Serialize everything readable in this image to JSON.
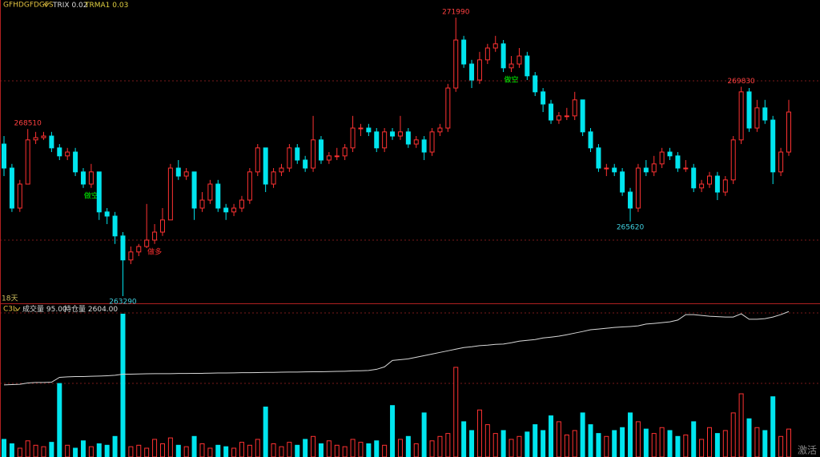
{
  "chart_data": {
    "type": "candlestick",
    "symbol": "GFHDGFDGFS",
    "indicators": [
      {
        "name": "TRIX",
        "value": 0.02
      },
      {
        "name": "TRMA1",
        "value": 0.03
      }
    ],
    "period_label": "18天",
    "panel_label": "C3L",
    "status": "激活",
    "open": [
      268040,
      267290,
      266040,
      266790,
      268170,
      268240,
      268290,
      267920,
      267670,
      267790,
      267170,
      266790,
      267170,
      265920,
      265790,
      265170,
      264420,
      264670,
      264840,
      265040,
      265290,
      265670,
      267290,
      267040,
      267170,
      266040,
      266290,
      266790,
      266040,
      265920,
      266040,
      266290,
      267170,
      267920,
      266790,
      267170,
      267290,
      267920,
      267540,
      267290,
      268170,
      267540,
      267670,
      267670,
      267920,
      268540,
      268540,
      268420,
      267920,
      268420,
      268290,
      268420,
      268040,
      268170,
      267790,
      268420,
      268540,
      269790,
      271290,
      270540,
      270040,
      270670,
      271040,
      271170,
      270420,
      270540,
      270790,
      270170,
      269670,
      269290,
      268790,
      268920,
      268920,
      269420,
      268420,
      267920,
      267290,
      267290,
      267170,
      266540,
      266040,
      267290,
      267170,
      267420,
      267790,
      267670,
      267290,
      267290,
      266670,
      266790,
      267040,
      266540,
      266920,
      268170,
      269670,
      268540,
      269170,
      268790,
      267170,
      267790
    ],
    "high": [
      268290,
      267420,
      266920,
      268510,
      268420,
      268420,
      268420,
      268040,
      267920,
      267920,
      267290,
      267420,
      267170,
      266040,
      265920,
      265290,
      264840,
      264920,
      266170,
      265540,
      266040,
      267420,
      267540,
      267290,
      267170,
      266540,
      266920,
      266920,
      266170,
      266170,
      266420,
      267290,
      268040,
      267920,
      267290,
      267420,
      268040,
      268040,
      267670,
      268920,
      268290,
      267790,
      267920,
      268040,
      268920,
      268670,
      268670,
      268540,
      268540,
      268540,
      268920,
      268540,
      268290,
      268290,
      268540,
      268670,
      269920,
      271990,
      271420,
      270670,
      270920,
      271170,
      271420,
      271290,
      270790,
      271040,
      270920,
      270290,
      269790,
      269420,
      269040,
      269170,
      269670,
      269420,
      268540,
      268040,
      267420,
      267420,
      267290,
      266670,
      267420,
      267540,
      267670,
      267920,
      267920,
      267790,
      267540,
      267420,
      266920,
      267170,
      267170,
      267040,
      268290,
      269830,
      269790,
      269420,
      269420,
      268920,
      267920,
      269420
    ],
    "low": [
      267040,
      265920,
      265920,
      266790,
      268040,
      268170,
      267790,
      267540,
      267540,
      267040,
      266670,
      266670,
      265670,
      265540,
      264920,
      263290,
      264290,
      264540,
      264790,
      264920,
      265170,
      265670,
      266920,
      266920,
      265670,
      265920,
      266170,
      265920,
      265670,
      265790,
      265920,
      266170,
      267040,
      266540,
      266670,
      267040,
      267170,
      267420,
      267170,
      267170,
      267420,
      267420,
      267540,
      267540,
      267790,
      268290,
      268290,
      267790,
      267790,
      268170,
      268170,
      267920,
      267920,
      267540,
      267670,
      268290,
      268420,
      269670,
      270420,
      269790,
      269920,
      270540,
      270920,
      270290,
      270290,
      270420,
      270040,
      269540,
      269040,
      268670,
      268670,
      268790,
      268790,
      268290,
      267790,
      267170,
      267040,
      267040,
      266420,
      265620,
      265920,
      267040,
      267040,
      267290,
      267540,
      267170,
      267170,
      266540,
      266540,
      266670,
      266290,
      266420,
      266790,
      268040,
      268420,
      268420,
      268670,
      266790,
      267040,
      267670
    ],
    "close": [
      267290,
      266040,
      266790,
      268170,
      268240,
      268290,
      267920,
      267670,
      267790,
      267170,
      266790,
      267170,
      265920,
      265790,
      265170,
      264420,
      264670,
      264840,
      265040,
      265290,
      265670,
      267290,
      267040,
      267170,
      266040,
      266290,
      266790,
      266040,
      265920,
      266040,
      266290,
      267170,
      267920,
      266790,
      267170,
      267290,
      267920,
      267540,
      267290,
      268170,
      267540,
      267670,
      267670,
      267920,
      268540,
      268540,
      268420,
      267920,
      268420,
      268290,
      268420,
      268040,
      268170,
      267790,
      268420,
      268540,
      269790,
      271290,
      270540,
      270040,
      270670,
      271040,
      271170,
      270420,
      270540,
      270790,
      270170,
      269670,
      269290,
      268790,
      268920,
      268920,
      269420,
      268420,
      267920,
      267290,
      267290,
      267170,
      266540,
      266040,
      267290,
      267170,
      267420,
      267790,
      267670,
      267290,
      267290,
      266670,
      266790,
      267040,
      266540,
      266920,
      268170,
      269670,
      268540,
      269170,
      268790,
      267170,
      267790,
      269040
    ],
    "ylim": [
      263090,
      272540
    ],
    "up_color": "#ff3232",
    "down_color": "#00e5ee",
    "high_labels": [
      268510,
      271990,
      269830
    ],
    "low_labels": [
      263290,
      265620
    ],
    "signals": [
      null,
      null,
      null,
      null,
      null,
      null,
      null,
      null,
      null,
      null,
      null,
      "做空",
      null,
      null,
      null,
      null,
      null,
      null,
      null,
      "做多",
      null,
      null,
      null,
      null,
      null,
      null,
      null,
      null,
      null,
      null,
      null,
      null,
      null,
      null,
      null,
      null,
      null,
      null,
      null,
      null,
      null,
      null,
      null,
      null,
      null,
      null,
      null,
      null,
      null,
      null,
      null,
      null,
      null,
      null,
      null,
      null,
      null,
      null,
      null,
      null,
      null,
      null,
      null,
      null,
      "做空",
      null,
      null,
      null,
      null,
      null,
      null,
      null,
      null,
      null,
      null,
      null,
      null,
      null,
      null,
      null,
      null,
      null,
      null,
      null,
      null,
      null,
      null,
      null,
      null,
      null,
      null,
      null,
      null,
      null,
      null,
      null,
      null,
      null,
      null,
      null
    ],
    "signal_colors": {
      "做空": "#00ff00",
      "做多": "#ff3030"
    },
    "volume": [
      60,
      45,
      30,
      55,
      40,
      35,
      50,
      250,
      40,
      30,
      55,
      35,
      45,
      40,
      70,
      486,
      35,
      40,
      30,
      60,
      45,
      65,
      40,
      35,
      70,
      45,
      30,
      40,
      35,
      30,
      50,
      40,
      60,
      170,
      45,
      35,
      50,
      40,
      60,
      70,
      45,
      55,
      40,
      35,
      60,
      50,
      45,
      55,
      40,
      175,
      60,
      70,
      45,
      150,
      55,
      70,
      80,
      305,
      120,
      90,
      160,
      110,
      80,
      90,
      60,
      70,
      85,
      110,
      90,
      140,
      120,
      75,
      90,
      150,
      110,
      80,
      70,
      90,
      100,
      150,
      120,
      95,
      80,
      100,
      90,
      70,
      75,
      120,
      60,
      100,
      80,
      90,
      150,
      215,
      130,
      100,
      90,
      205,
      70,
      95
    ],
    "volume_lim": [
      0,
      520
    ],
    "volume_label": {
      "name": "成交量",
      "value": 95,
      "label": "95.00"
    },
    "open_interest": [
      2148,
      2150,
      2152,
      2160,
      2163,
      2163,
      2165,
      2195,
      2198,
      2200,
      2200,
      2202,
      2203,
      2205,
      2208,
      2215,
      2215,
      2216,
      2217,
      2218,
      2218,
      2218,
      2219,
      2219,
      2220,
      2220,
      2221,
      2222,
      2222,
      2223,
      2224,
      2224,
      2225,
      2226,
      2226,
      2227,
      2228,
      2228,
      2229,
      2230,
      2230,
      2231,
      2232,
      2233,
      2235,
      2236,
      2238,
      2245,
      2260,
      2300,
      2305,
      2310,
      2320,
      2330,
      2340,
      2350,
      2360,
      2370,
      2380,
      2385,
      2392,
      2395,
      2400,
      2402,
      2410,
      2420,
      2425,
      2430,
      2440,
      2445,
      2451,
      2460,
      2470,
      2480,
      2491,
      2495,
      2500,
      2505,
      2508,
      2511,
      2515,
      2526,
      2530,
      2535,
      2540,
      2551,
      2585,
      2585,
      2580,
      2575,
      2572,
      2570,
      2570,
      2590,
      2556,
      2556,
      2560,
      2570,
      2585,
      2604
    ],
    "oi_lim": [
      1700,
      2650
    ],
    "oi_color": "#d8d8d8",
    "oi_label": {
      "name": "持仓量",
      "value": 2604,
      "label": "2604.00"
    }
  }
}
